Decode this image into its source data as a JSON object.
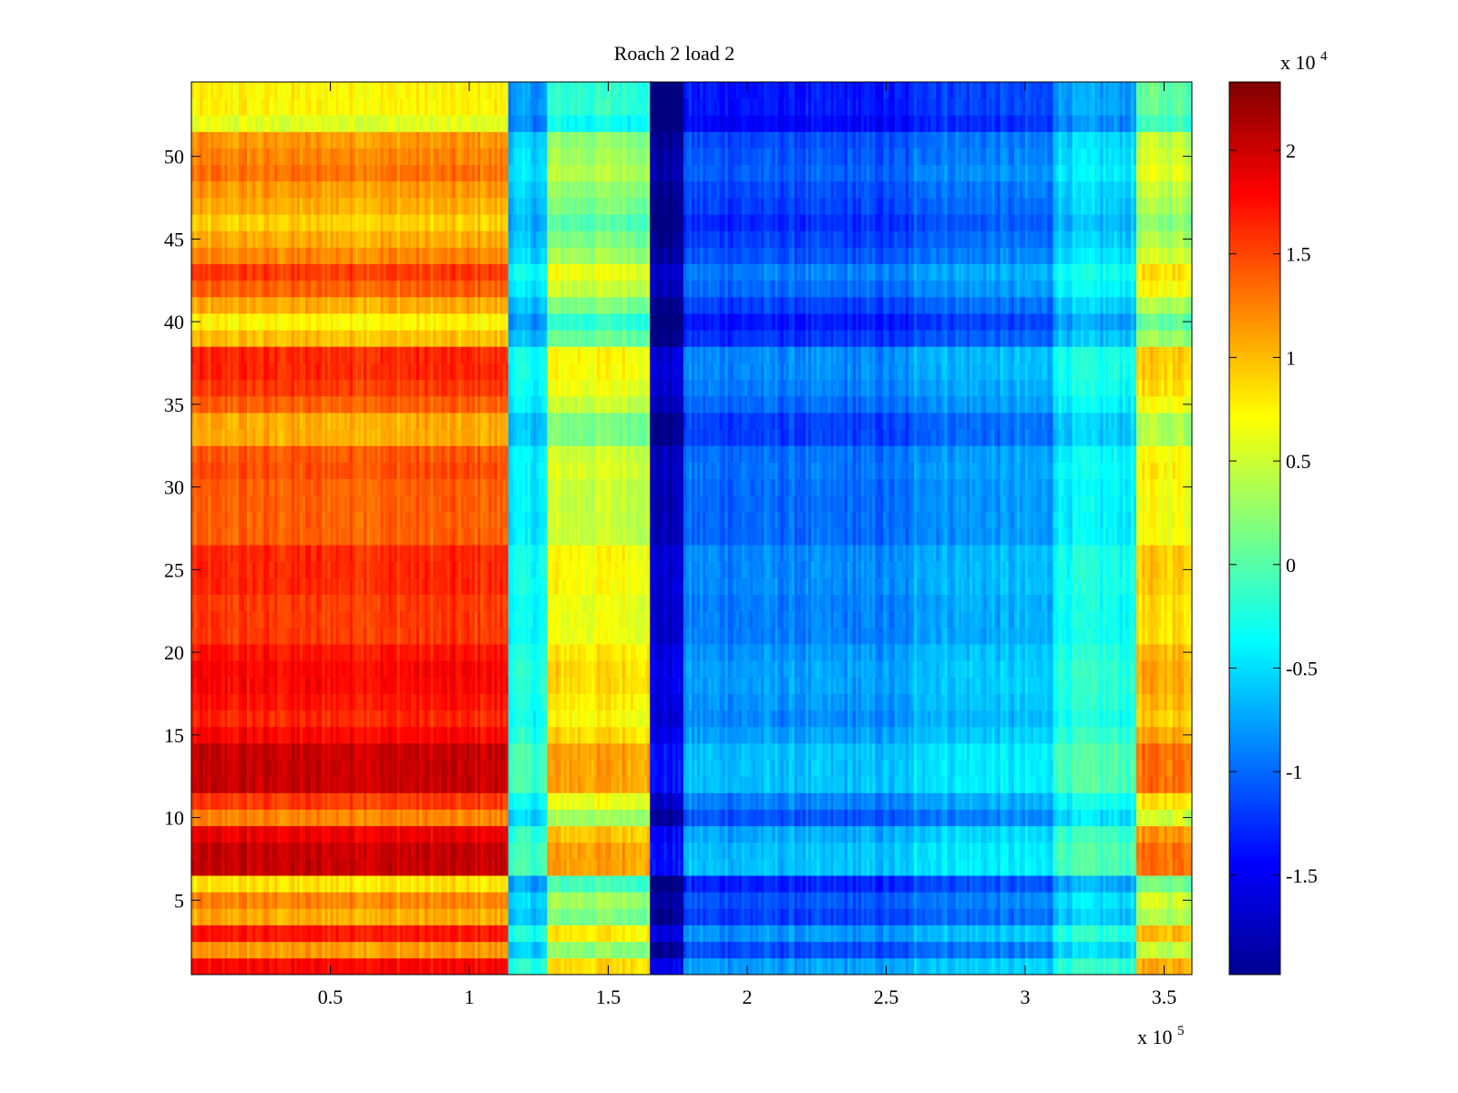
{
  "chart_data": {
    "type": "heatmap",
    "title": "Roach 2 load 2",
    "xlabel": "",
    "ylabel": "",
    "x_multiplier_label": "x 10",
    "x_multiplier_exponent": "5",
    "x_ticks": [
      0.5,
      1,
      1.5,
      2,
      2.5,
      3,
      3.5
    ],
    "x_tick_labels": [
      "0.5",
      "1",
      "1.5",
      "2",
      "2.5",
      "3",
      "3.5"
    ],
    "xlim": [
      0,
      3.6
    ],
    "y_ticks": [
      5,
      10,
      15,
      20,
      25,
      30,
      35,
      40,
      45,
      50
    ],
    "y_tick_labels": [
      "5",
      "10",
      "15",
      "20",
      "25",
      "30",
      "35",
      "40",
      "45",
      "50"
    ],
    "ylim": [
      0.5,
      54.5
    ],
    "n_rows": 54,
    "colormap": "jet",
    "colorbar": {
      "multiplier_label": "x 10",
      "multiplier_exponent": "4",
      "ticks": [
        -1.5,
        -1,
        -0.5,
        0,
        0.5,
        1,
        1.5,
        2
      ],
      "tick_labels": [
        "-1.5",
        "-1",
        "-0.5",
        "0",
        "0.5",
        "1",
        "1.5",
        "2"
      ],
      "clim": [
        -1.98,
        2.33
      ]
    },
    "segments": [
      {
        "x_start": 0.0,
        "x_end": 1.14,
        "base": 1.3
      },
      {
        "x_start": 1.14,
        "x_end": 1.28,
        "base": -0.5
      },
      {
        "x_start": 1.28,
        "x_end": 1.65,
        "base": 0.4
      },
      {
        "x_start": 1.65,
        "x_end": 1.77,
        "base": -1.8
      },
      {
        "x_start": 1.77,
        "x_end": 2.6,
        "base": -1.05
      },
      {
        "x_start": 2.6,
        "x_end": 3.1,
        "base": -0.85
      },
      {
        "x_start": 3.1,
        "x_end": 3.4,
        "base": -0.45
      },
      {
        "x_start": 3.4,
        "x_end": 3.6,
        "base": 0.6
      }
    ],
    "row_profile": [
      0.85,
      0.45,
      0.8,
      0.4,
      0.5,
      0.25,
      1.0,
      1.0,
      0.9,
      0.5,
      0.7,
      1.0,
      1.0,
      1.0,
      0.85,
      0.75,
      0.8,
      0.85,
      0.85,
      0.8,
      0.7,
      0.7,
      0.7,
      0.75,
      0.75,
      0.75,
      0.6,
      0.6,
      0.6,
      0.6,
      0.65,
      0.62,
      0.4,
      0.4,
      0.6,
      0.7,
      0.75,
      0.75,
      0.35,
      0.2,
      0.4,
      0.6,
      0.7,
      0.5,
      0.4,
      0.3,
      0.4,
      0.45,
      0.55,
      0.5,
      0.45,
      0.1,
      0.2,
      0.2
    ]
  }
}
